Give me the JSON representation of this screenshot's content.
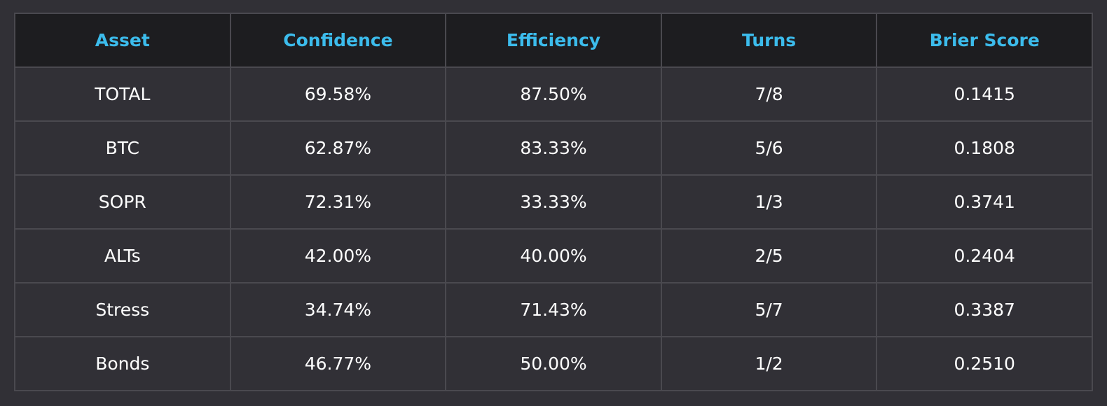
{
  "chart_data": {
    "type": "table",
    "colors": {
      "background": "#313036",
      "header_background": "#1d1d20",
      "header_text": "#3cbcec",
      "cell_text": "#ffffff",
      "grid": "#4a494f"
    },
    "columns": [
      "Asset",
      "Confidence",
      "Efficiency",
      "Turns",
      "Brier Score"
    ],
    "rows": [
      [
        "TOTAL",
        "69.58%",
        "87.50%",
        "7/8",
        "0.1415"
      ],
      [
        "BTC",
        "62.87%",
        "83.33%",
        "5/6",
        "0.1808"
      ],
      [
        "SOPR",
        "72.31%",
        "33.33%",
        "1/3",
        "0.3741"
      ],
      [
        "ALTs",
        "42.00%",
        "40.00%",
        "2/5",
        "0.2404"
      ],
      [
        "Stress",
        "34.74%",
        "71.43%",
        "5/7",
        "0.3387"
      ],
      [
        "Bonds",
        "46.77%",
        "50.00%",
        "1/2",
        "0.2510"
      ]
    ]
  }
}
